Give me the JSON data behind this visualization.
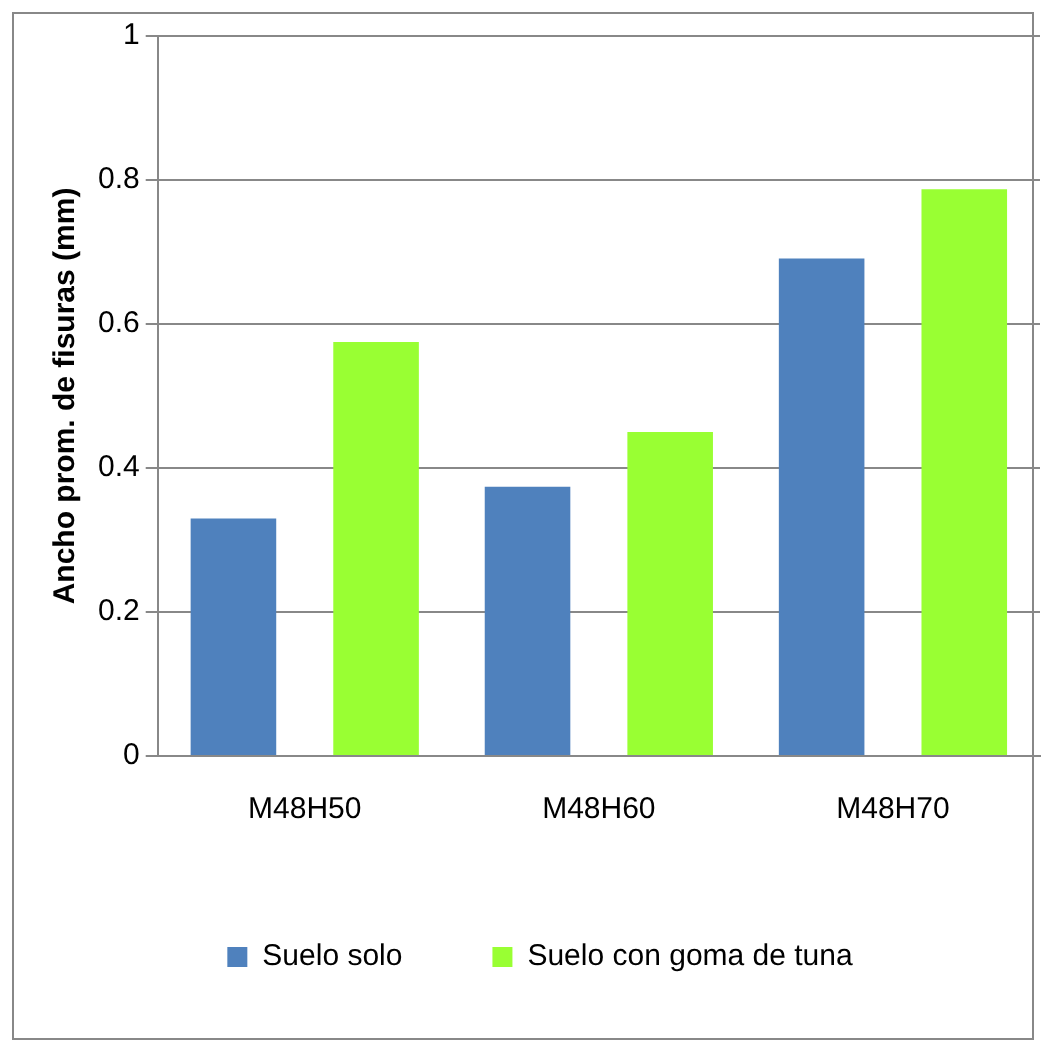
{
  "chart_data": {
    "type": "bar",
    "ylabel": "Ancho prom. de fisuras (mm)",
    "categories": [
      "M48H50",
      "M48H60",
      "M48H70"
    ],
    "series": [
      {
        "name": "Suelo solo",
        "color": "#4f81bd",
        "values": [
          0.33,
          0.374,
          0.691
        ]
      },
      {
        "name": "Suelo con goma de tuna",
        "color": "#99ff33",
        "values": [
          0.575,
          0.45,
          0.787
        ]
      }
    ],
    "ylim": [
      0,
      1
    ],
    "yticks": [
      0,
      0.2,
      0.4,
      0.6,
      0.8,
      1
    ],
    "grid": "y",
    "legend": "bottom"
  }
}
